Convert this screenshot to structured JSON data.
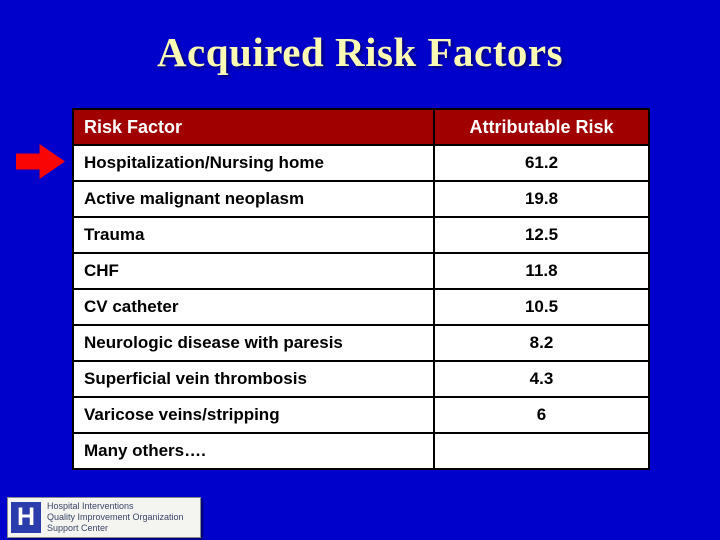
{
  "slide": {
    "title": "Acquired Risk Factors"
  },
  "table": {
    "headers": [
      "Risk Factor",
      "Attributable Risk"
    ],
    "rows": [
      {
        "label": "Hospitalization/Nursing home",
        "value": "61.2"
      },
      {
        "label": "Active malignant neoplasm",
        "value": "19.8"
      },
      {
        "label": "Trauma",
        "value": "12.5"
      },
      {
        "label": "CHF",
        "value": "11.8"
      },
      {
        "label": "CV catheter",
        "value": "10.5"
      },
      {
        "label": "Neurologic disease with paresis",
        "value": "8.2"
      },
      {
        "label": "Superficial vein thrombosis",
        "value": "4.3"
      },
      {
        "label": "Varicose veins/stripping",
        "value": "6"
      },
      {
        "label": "Many others….",
        "value": ""
      }
    ]
  },
  "annotations": {
    "arrow": "red-right-arrow",
    "arrow_points_to": "Hospitalization/Nursing home",
    "arrow_color": "#FA0505"
  },
  "logo": {
    "monogram": "H",
    "lines": [
      "Hospital Interventions",
      "Quality Improvement Organization",
      "Support Center"
    ]
  },
  "colors": {
    "background": "#0101CC",
    "table_header_bg": "#A00000",
    "table_header_text": "#FFFFFF",
    "title_text": "#FAFAB4",
    "row_bg": "#FFFFFF",
    "row_text": "#000000"
  }
}
